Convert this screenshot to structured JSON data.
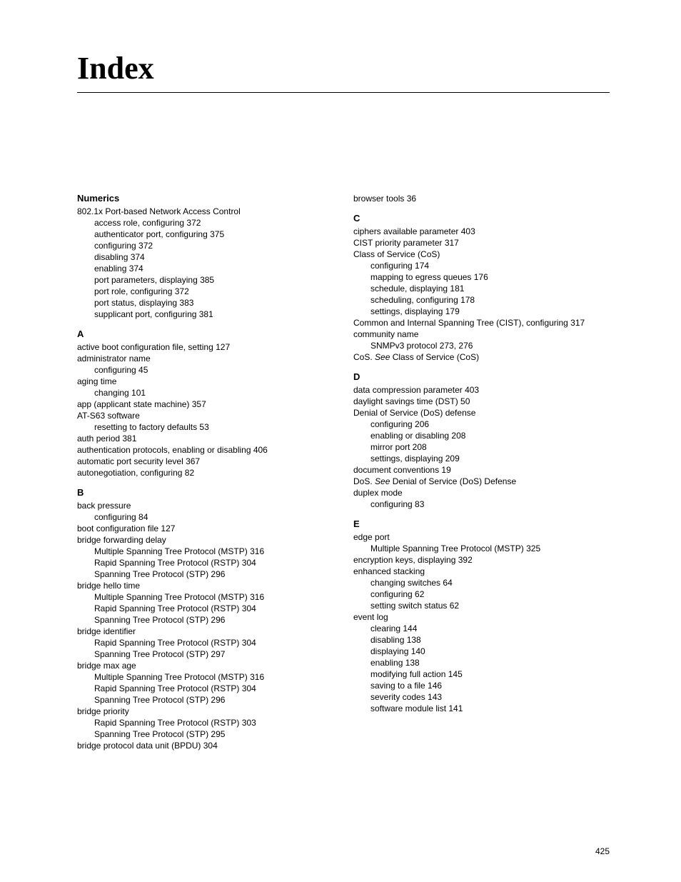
{
  "title": "Index",
  "page_number": "425",
  "left": {
    "numerics_head": "Numerics",
    "num_l1": "802.1x Port-based Network Access Control",
    "num_s1": "access role, configuring 372",
    "num_s2": "authenticator port, configuring 375",
    "num_s3": "configuring 372",
    "num_s4": "disabling 374",
    "num_s5": "enabling 374",
    "num_s6": "port parameters, displaying 385",
    "num_s7": "port role, configuring 372",
    "num_s8": "port status, displaying 383",
    "num_s9": "supplicant port, configuring 381",
    "a_head": "A",
    "a_l1": "active boot configuration file, setting 127",
    "a_l2": "administrator name",
    "a_s1": "configuring 45",
    "a_l3": "aging time",
    "a_s2": "changing 101",
    "a_l4": "app (applicant state machine) 357",
    "a_l5": "AT-S63 software",
    "a_s3": "resetting to factory defaults 53",
    "a_l6": "auth period 381",
    "a_l7": "authentication protocols, enabling or disabling 406",
    "a_l8": "automatic port security level 367",
    "a_l9": "autonegotiation, configuring 82",
    "b_head": "B",
    "b_l1": "back pressure",
    "b_s1": "configuring 84",
    "b_l2": "boot configuration file 127",
    "b_l3": "bridge forwarding delay",
    "b_s2": "Multiple Spanning Tree Protocol (MSTP) 316",
    "b_s3": "Rapid Spanning Tree Protocol (RSTP) 304",
    "b_s4": "Spanning Tree Protocol (STP) 296",
    "b_l4": "bridge hello time",
    "b_s5": "Multiple Spanning Tree Protocol (MSTP) 316",
    "b_s6": "Rapid Spanning Tree Protocol (RSTP) 304",
    "b_s7": "Spanning Tree Protocol (STP) 296",
    "b_l5": "bridge identifier",
    "b_s8": "Rapid Spanning Tree Protocol (RSTP) 304",
    "b_s9": "Spanning Tree Protocol (STP) 297",
    "b_l6": "bridge max age",
    "b_s10": "Multiple Spanning Tree Protocol (MSTP) 316",
    "b_s11": "Rapid Spanning Tree Protocol (RSTP) 304",
    "b_s12": "Spanning Tree Protocol (STP) 296",
    "b_l7": "bridge priority",
    "b_s13": "Rapid Spanning Tree Protocol (RSTP) 303",
    "b_s14": "Spanning Tree Protocol (STP) 295",
    "b_l8": "bridge protocol data unit (BPDU) 304"
  },
  "right": {
    "r_top": "browser tools 36",
    "c_head": "C",
    "c_l1": "ciphers available parameter 403",
    "c_l2": "CIST priority parameter 317",
    "c_l3": "Class of Service (CoS)",
    "c_s1": "configuring 174",
    "c_s2": "mapping to egress queues 176",
    "c_s3": "schedule, displaying 181",
    "c_s4": "scheduling, configuring 178",
    "c_s5": "settings, displaying 179",
    "c_l4": "Common and Internal Spanning Tree (CIST), configuring 317",
    "c_l5": "community name",
    "c_s6": "SNMPv3 protocol 273, 276",
    "c_l6_pre": "CoS. ",
    "c_l6_em": "See",
    "c_l6_post": " Class of Service (CoS)",
    "d_head": "D",
    "d_l1": "data compression parameter 403",
    "d_l2": "daylight savings time (DST) 50",
    "d_l3": "Denial of Service (DoS) defense",
    "d_s1": "configuring 206",
    "d_s2": "enabling or disabling 208",
    "d_s3": "mirror port 208",
    "d_s4": "settings, displaying 209",
    "d_l4": "document conventions 19",
    "d_l5_pre": "DoS. ",
    "d_l5_em": "See ",
    "d_l5_post": " Denial of Service (DoS) Defense",
    "d_l6": "duplex mode",
    "d_s5": "configuring 83",
    "e_head": "E",
    "e_l1": "edge port",
    "e_s1": "Multiple Spanning Tree Protocol (MSTP) 325",
    "e_l2": "encryption keys, displaying 392",
    "e_l3": "enhanced stacking",
    "e_s2": "changing switches 64",
    "e_s3": "configuring 62",
    "e_s4": "setting switch status 62",
    "e_l4": "event log",
    "e_s5": "clearing 144",
    "e_s6": "disabling 138",
    "e_s7": "displaying 140",
    "e_s8": "enabling 138",
    "e_s9": "modifying full action 145",
    "e_s10": "saving to a file 146",
    "e_s11": "severity codes 143",
    "e_s12": "software module list 141"
  }
}
